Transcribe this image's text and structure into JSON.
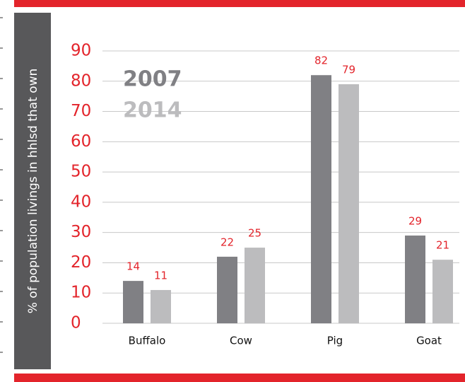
{
  "chart_data": {
    "type": "bar",
    "y_label": "% of population livings in hhlsd that own",
    "categories": [
      "Buffalo",
      "Cow",
      "Pig",
      "Goat"
    ],
    "series": [
      {
        "name": "2007",
        "color": "#808084",
        "values": [
          14,
          22,
          82,
          29
        ]
      },
      {
        "name": "2014",
        "color": "#bcbcbe",
        "values": [
          11,
          25,
          79,
          21
        ]
      }
    ],
    "ylim": [
      0,
      90
    ],
    "yticks": [
      0,
      10,
      20,
      30,
      40,
      50,
      60,
      70,
      80,
      90
    ],
    "grid": true
  }
}
